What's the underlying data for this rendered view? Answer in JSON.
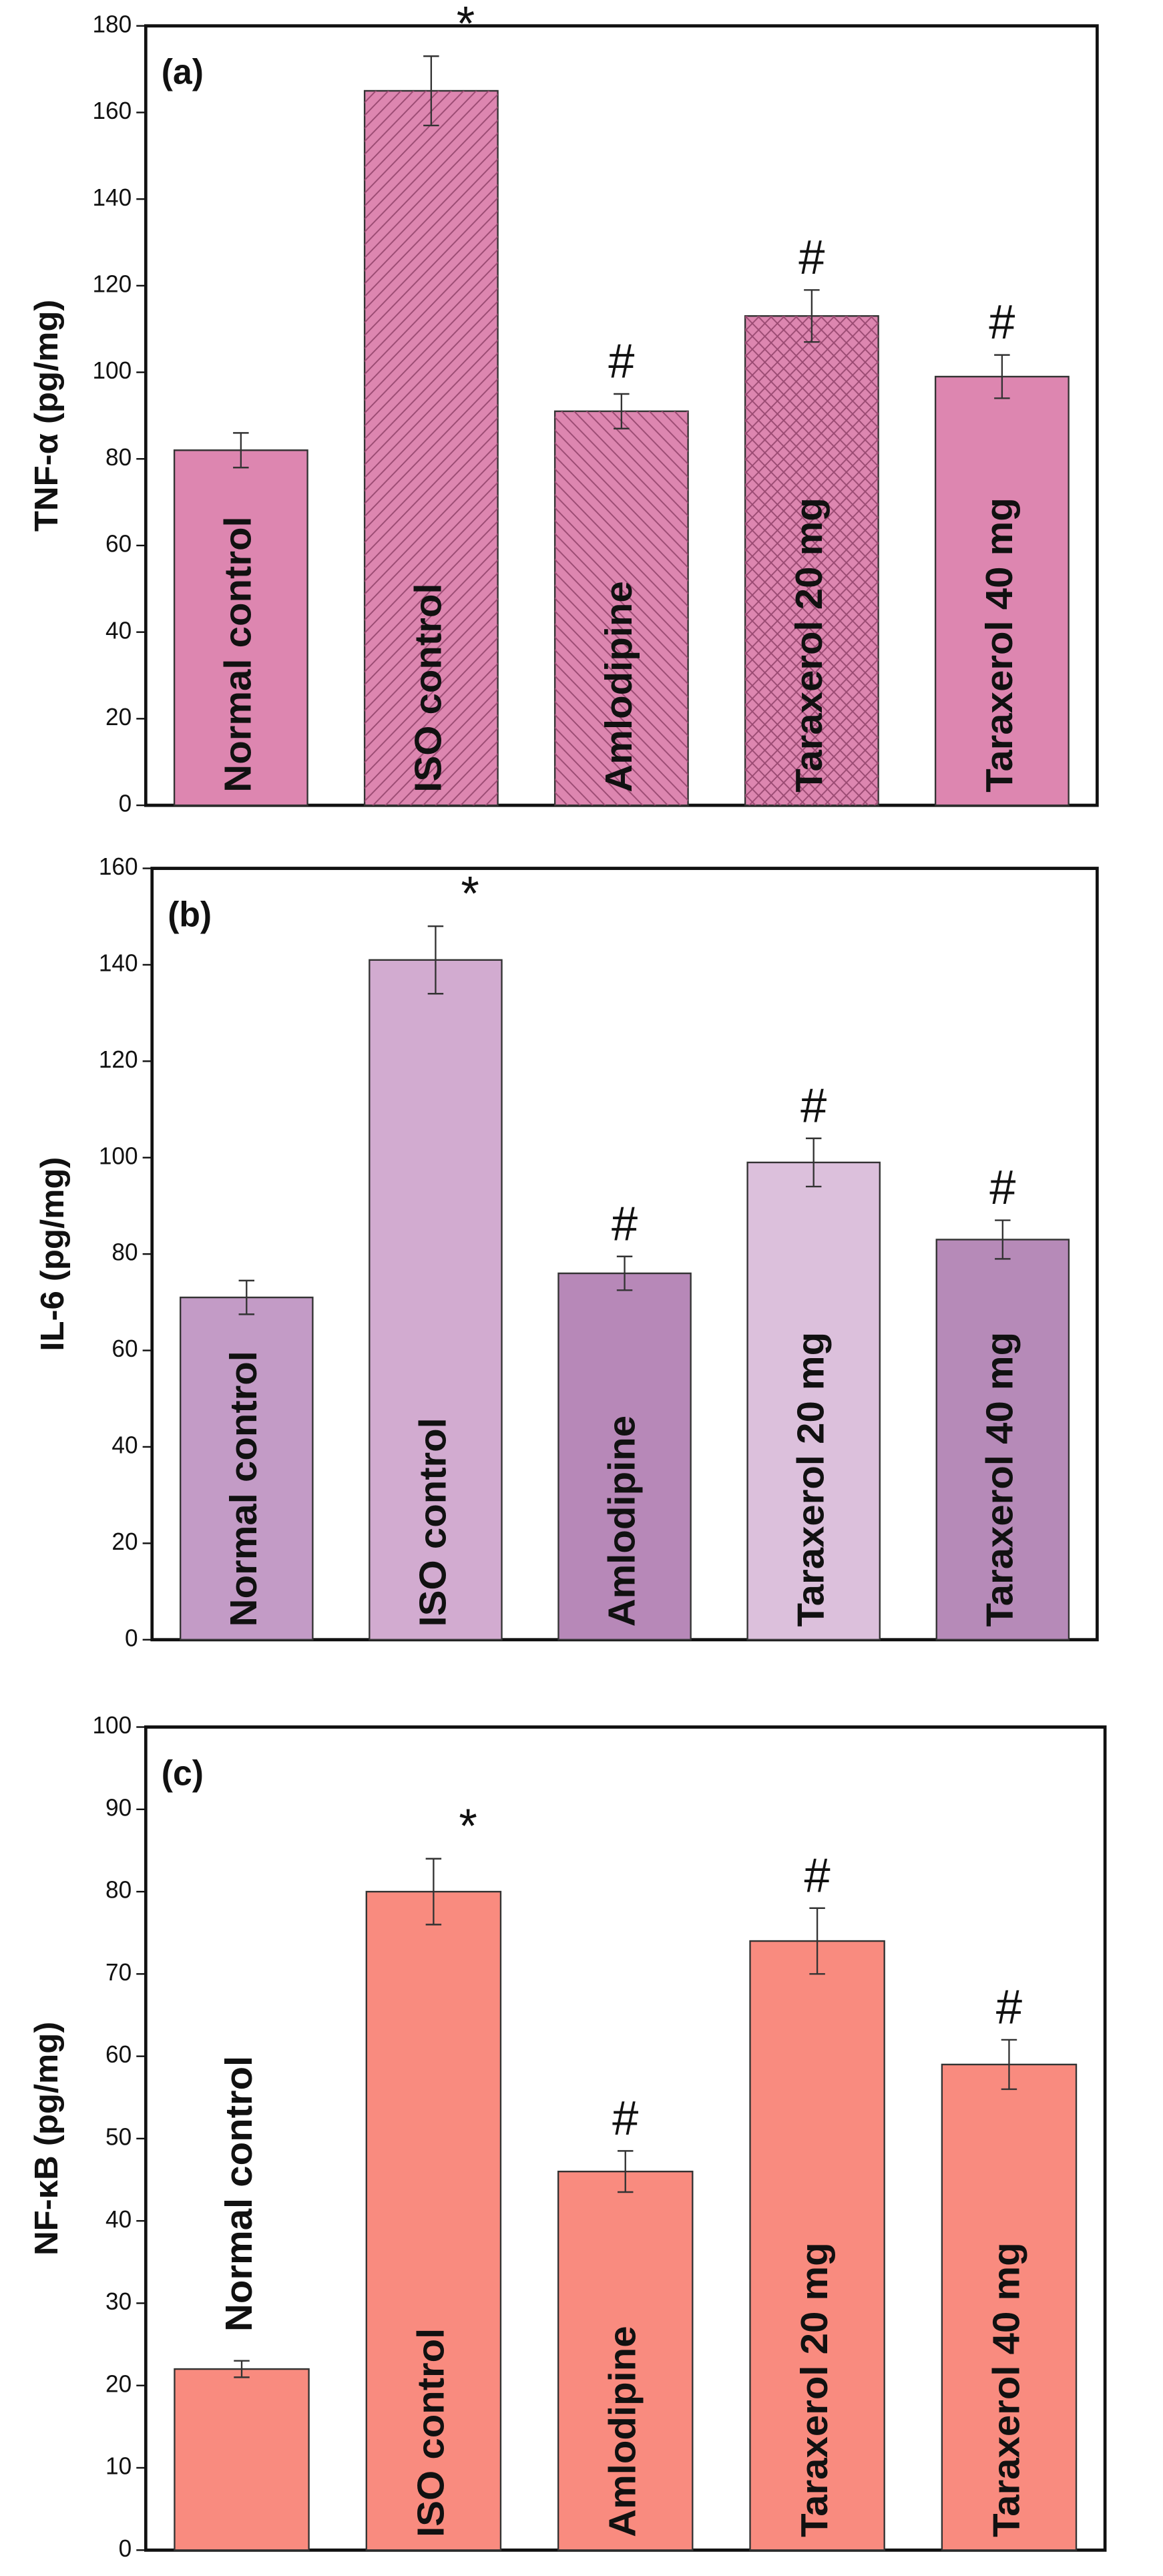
{
  "chart_data": [
    {
      "type": "bar",
      "panel_label": "(a)",
      "ylabel": "TNF-α (pg/mg)",
      "categories": [
        "Normal control",
        "ISO control",
        "Amlodipine",
        "Taraxerol 20 mg",
        "Taraxerol 40 mg"
      ],
      "values": [
        82,
        165,
        91,
        113,
        99
      ],
      "errors": [
        4,
        8,
        4,
        6,
        5
      ],
      "annotations": [
        null,
        "*",
        "#",
        "#",
        "#"
      ],
      "color": "#dd86b0",
      "hatches": [
        "none",
        "fwd",
        "back",
        "cross",
        "none"
      ],
      "ylim": [
        0,
        180
      ],
      "yticks": [
        0,
        20,
        40,
        60,
        80,
        100,
        120,
        140,
        160,
        180
      ]
    },
    {
      "type": "bar",
      "panel_label": "(b)",
      "ylabel": "IL-6 (pg/mg)",
      "categories": [
        "Normal control",
        "ISO control",
        "Amlodipine",
        "Taraxerol 20 mg",
        "Taraxerol 40 mg"
      ],
      "values": [
        71,
        141,
        76,
        99,
        83
      ],
      "errors": [
        3.5,
        7,
        3.5,
        5,
        4
      ],
      "annotations": [
        null,
        "*",
        "#",
        "#",
        "#"
      ],
      "colors": [
        "#c39bc6",
        "#d2abd0",
        "#b788b8",
        "#dcc0dc",
        "#b68ab8"
      ],
      "ylim": [
        0,
        160
      ],
      "yticks": [
        0,
        20,
        40,
        60,
        80,
        100,
        120,
        140,
        160
      ]
    },
    {
      "type": "bar",
      "panel_label": "(c)",
      "ylabel": "NF-κB  (pg/mg)",
      "categories": [
        "Normal control",
        "ISO control",
        "Amlodipine",
        "Taraxerol 20 mg",
        "Taraxerol 40 mg"
      ],
      "values": [
        22,
        80,
        46,
        74,
        59
      ],
      "errors": [
        1,
        4,
        2.5,
        4,
        3
      ],
      "annotations": [
        null,
        "*",
        "#",
        "#",
        "#"
      ],
      "color": "#f98b7f",
      "ylim": [
        0,
        100
      ],
      "yticks": [
        0,
        10,
        20,
        30,
        40,
        50,
        60,
        70,
        80,
        90,
        100
      ]
    }
  ]
}
